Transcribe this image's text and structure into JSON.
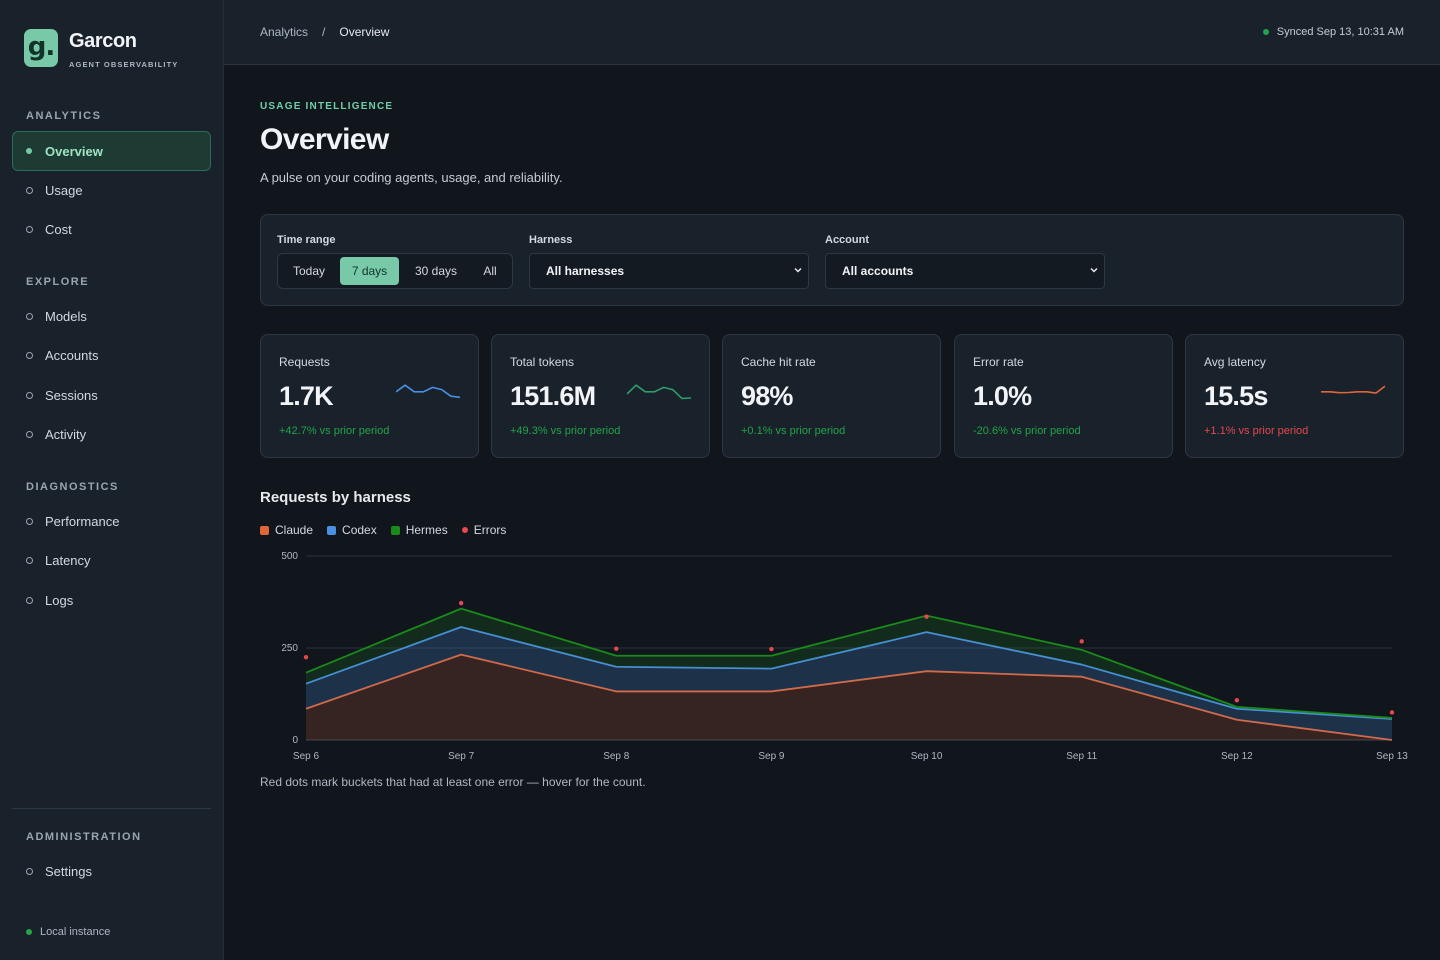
{
  "brand": {
    "logo_text": "g.",
    "name": "Garcon",
    "subtitle": "AGENT OBSERVABILITY"
  },
  "sidebar": {
    "sections": [
      {
        "label": "ANALYTICS",
        "items": [
          {
            "label": "Overview",
            "active": true
          },
          {
            "label": "Usage"
          },
          {
            "label": "Cost"
          }
        ]
      },
      {
        "label": "EXPLORE",
        "items": [
          {
            "label": "Models"
          },
          {
            "label": "Accounts"
          },
          {
            "label": "Sessions"
          },
          {
            "label": "Activity"
          }
        ]
      },
      {
        "label": "DIAGNOSTICS",
        "items": [
          {
            "label": "Performance"
          },
          {
            "label": "Latency"
          },
          {
            "label": "Logs"
          }
        ]
      },
      {
        "label": "ADMINISTRATION",
        "items": [
          {
            "label": "Settings"
          }
        ]
      }
    ],
    "footer_status": "Local instance"
  },
  "topbar": {
    "breadcrumb": [
      "Analytics",
      "Overview"
    ],
    "breadcrumb_separator": "/",
    "sync_status": "Synced Sep 13, 10:31 AM"
  },
  "page": {
    "eyebrow": "USAGE INTELLIGENCE",
    "title": "Overview",
    "description": "A pulse on your coding agents, usage, and reliability."
  },
  "filters": {
    "time_range": {
      "label": "Time range",
      "options": [
        "Today",
        "7 days",
        "30 days",
        "All"
      ],
      "selected": "7 days"
    },
    "harness": {
      "label": "Harness",
      "value": "All harnesses"
    },
    "account": {
      "label": "Account",
      "value": "All accounts"
    }
  },
  "kpis": [
    {
      "label": "Requests",
      "value": "1.7K",
      "delta": "+42.7% vs prior period",
      "delta_color": "#22a447",
      "spark_color": "#4a90e2",
      "spark": [
        6,
        9,
        6,
        6,
        8,
        7,
        4,
        3.5
      ]
    },
    {
      "label": "Total tokens",
      "value": "151.6M",
      "delta": "+49.3% vs prior period",
      "delta_color": "#22a447",
      "spark_color": "#2e9d6a",
      "spark": [
        5,
        9,
        6,
        6,
        8,
        7,
        3,
        3.2
      ]
    },
    {
      "label": "Cache hit rate",
      "value": "98%",
      "delta": "+0.1% vs prior period",
      "delta_color": "#22a447"
    },
    {
      "label": "Error rate",
      "value": "1.0%",
      "delta": "-20.6% vs prior period",
      "delta_color": "#22a447"
    },
    {
      "label": "Avg latency",
      "value": "15.5s",
      "delta": "+1.1% vs prior period",
      "delta_color": "#e5484d",
      "spark_color": "#e0663a",
      "spark": [
        6,
        6,
        5.6,
        5.7,
        6,
        6,
        5.4,
        8.6
      ]
    }
  ],
  "chart": {
    "title": "Requests by harness",
    "note": "Red dots mark buckets that had at least one error — hover for the count."
  },
  "chart_data": {
    "type": "area",
    "stacked": true,
    "x": [
      "Sep 6",
      "Sep 7",
      "Sep 8",
      "Sep 9",
      "Sep 10",
      "Sep 11",
      "Sep 12",
      "Sep 13"
    ],
    "ylim": [
      0,
      500
    ],
    "yticks": [
      0,
      250,
      500
    ],
    "grid": true,
    "legend_position": "top-left",
    "series": [
      {
        "name": "Claude",
        "color": "#e0663a",
        "values": [
          85,
          232,
          132,
          132,
          187,
          172,
          55,
          0
        ]
      },
      {
        "name": "Codex",
        "color": "#4a90e2",
        "values": [
          68,
          75,
          67,
          62,
          106,
          33,
          30,
          57
        ]
      },
      {
        "name": "Hermes",
        "color": "#1a8a1a",
        "values": [
          30,
          50,
          30,
          35,
          45,
          40,
          5,
          3
        ]
      }
    ],
    "errors": {
      "name": "Errors",
      "color": "#e5484d",
      "values": [
        225,
        372,
        248,
        247,
        335,
        268,
        108,
        75
      ]
    }
  }
}
